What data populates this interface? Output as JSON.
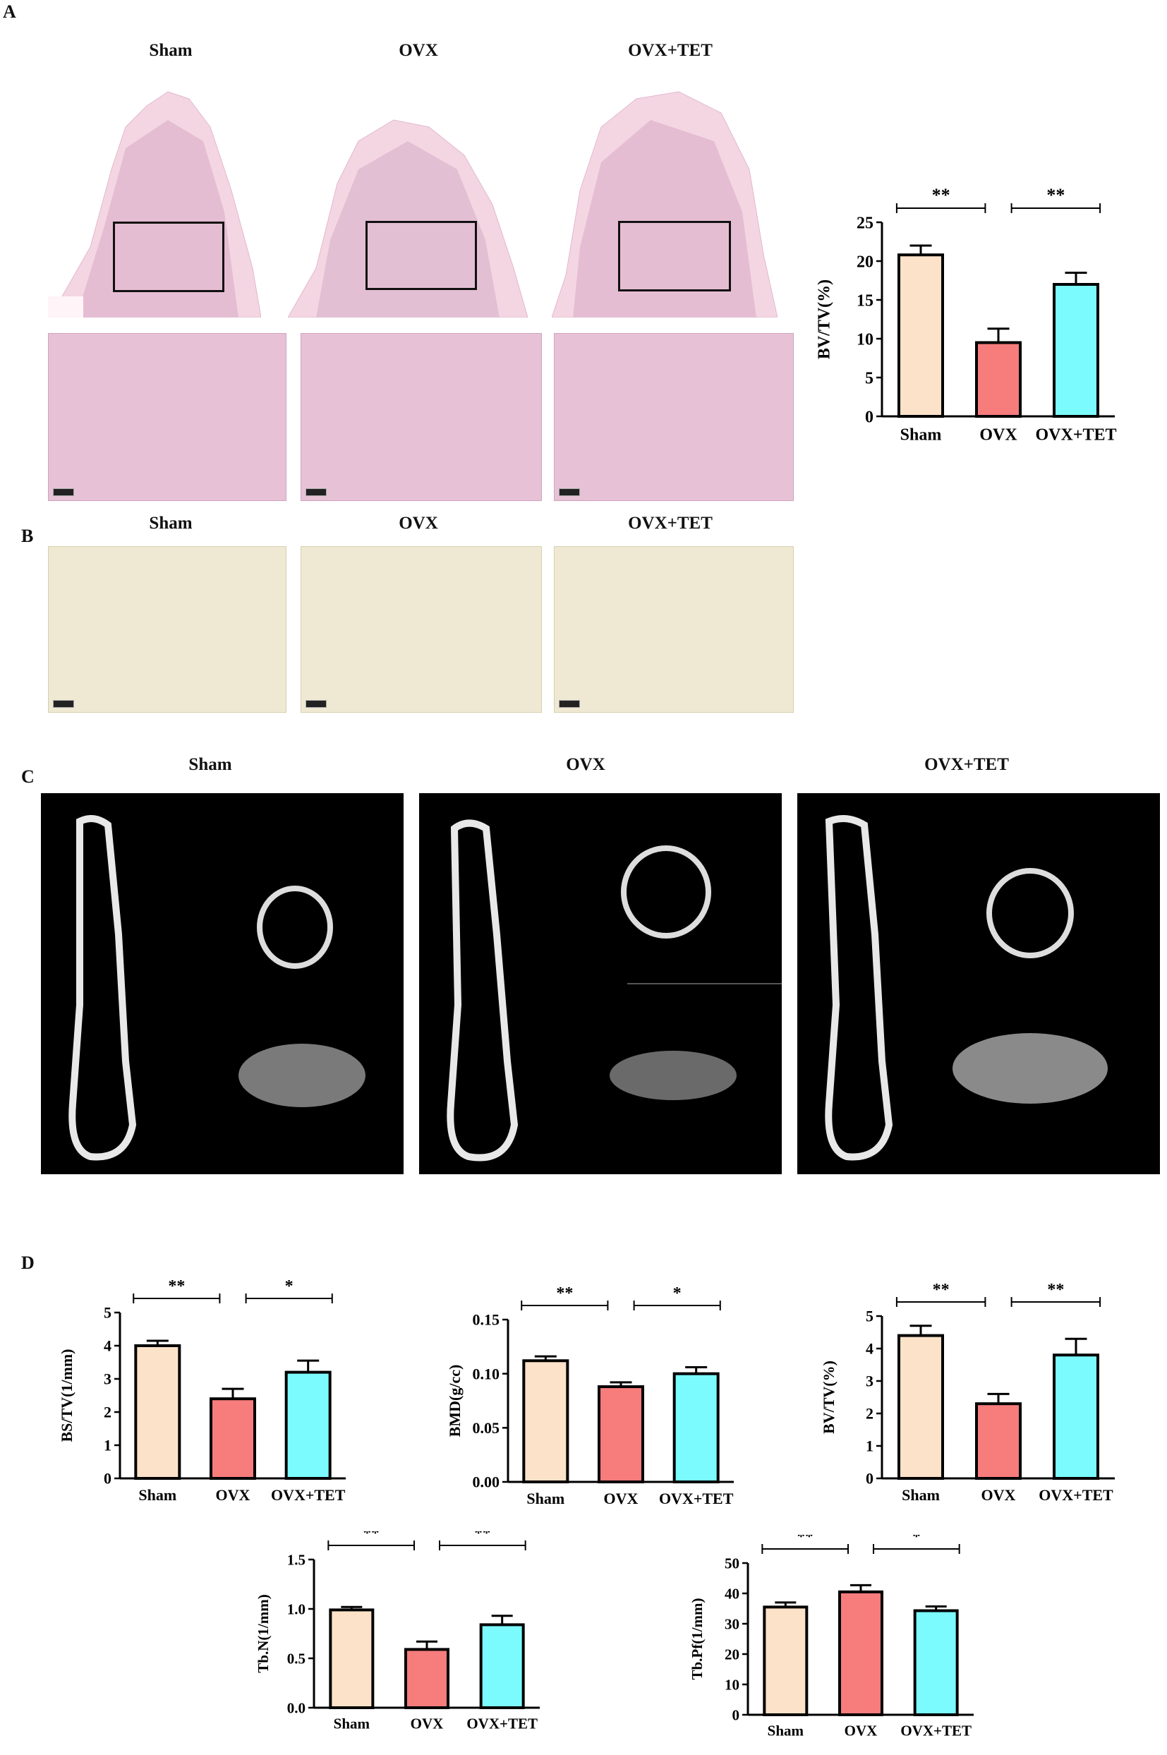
{
  "panels": {
    "A": "A",
    "B": "B",
    "C": "C",
    "D": "D"
  },
  "groups": [
    "Sham",
    "OVX",
    "OVX+TET"
  ],
  "colors": {
    "sham": "#FCE2C8",
    "ovx": "#F77C7C",
    "tet": "#7CFBFF"
  },
  "chart_data": [
    {
      "type": "bar",
      "categories": [
        "Sham",
        "OVX",
        "OVX+TET"
      ],
      "values": [
        20.8,
        9.5,
        17.0
      ],
      "errors": [
        1.2,
        1.8,
        1.5
      ],
      "ylabel": "BV/TV(%)",
      "ylim": [
        0,
        25
      ],
      "yticks": [
        0,
        5,
        10,
        15,
        20,
        25
      ],
      "significance": [
        {
          "from": 0,
          "to": 1,
          "label": "**"
        },
        {
          "from": 1,
          "to": 2,
          "label": "**"
        }
      ]
    },
    {
      "type": "bar",
      "categories": [
        "Sham",
        "OVX",
        "OVX+TET"
      ],
      "values": [
        4.0,
        2.4,
        3.2
      ],
      "errors": [
        0.15,
        0.3,
        0.35
      ],
      "ylabel": "BS/TV(1/mm)",
      "ylim": [
        0,
        5
      ],
      "yticks": [
        0,
        1,
        2,
        3,
        4,
        5
      ],
      "significance": [
        {
          "from": 0,
          "to": 1,
          "label": "**"
        },
        {
          "from": 1,
          "to": 2,
          "label": "*"
        }
      ]
    },
    {
      "type": "bar",
      "categories": [
        "Sham",
        "OVX",
        "OVX+TET"
      ],
      "values": [
        0.112,
        0.088,
        0.1
      ],
      "errors": [
        0.004,
        0.004,
        0.006
      ],
      "ylabel": "BMD(g/cc)",
      "ylim": [
        0,
        0.15
      ],
      "yticks": [
        "0.00",
        "0.05",
        "0.10",
        "0.15"
      ],
      "significance": [
        {
          "from": 0,
          "to": 1,
          "label": "**"
        },
        {
          "from": 1,
          "to": 2,
          "label": "*"
        }
      ]
    },
    {
      "type": "bar",
      "categories": [
        "Sham",
        "OVX",
        "OVX+TET"
      ],
      "values": [
        4.4,
        2.3,
        3.8
      ],
      "errors": [
        0.3,
        0.3,
        0.5
      ],
      "ylabel": "BV/TV(%)",
      "ylim": [
        0,
        5
      ],
      "yticks": [
        0,
        1,
        2,
        3,
        4,
        5
      ],
      "significance": [
        {
          "from": 0,
          "to": 1,
          "label": "**"
        },
        {
          "from": 1,
          "to": 2,
          "label": "**"
        }
      ]
    },
    {
      "type": "bar",
      "categories": [
        "Sham",
        "OVX",
        "OVX+TET"
      ],
      "values": [
        0.99,
        0.59,
        0.84
      ],
      "errors": [
        0.03,
        0.08,
        0.09
      ],
      "ylabel": "Tb.N(1/mm)",
      "ylim": [
        0,
        1.5
      ],
      "yticks": [
        "0.0",
        "0.5",
        "1.0",
        "1.5"
      ],
      "significance": [
        {
          "from": 0,
          "to": 1,
          "label": "**"
        },
        {
          "from": 1,
          "to": 2,
          "label": "**"
        }
      ]
    },
    {
      "type": "bar",
      "categories": [
        "Sham",
        "OVX",
        "OVX+TET"
      ],
      "values": [
        35.5,
        40.5,
        34.3
      ],
      "errors": [
        1.5,
        2.2,
        1.4
      ],
      "ylabel": "Tb.Pf(1/mm)",
      "ylim": [
        0,
        50
      ],
      "yticks": [
        0,
        10,
        20,
        30,
        40,
        50
      ],
      "significance": [
        {
          "from": 0,
          "to": 1,
          "label": "**"
        },
        {
          "from": 1,
          "to": 2,
          "label": "*"
        }
      ]
    }
  ]
}
